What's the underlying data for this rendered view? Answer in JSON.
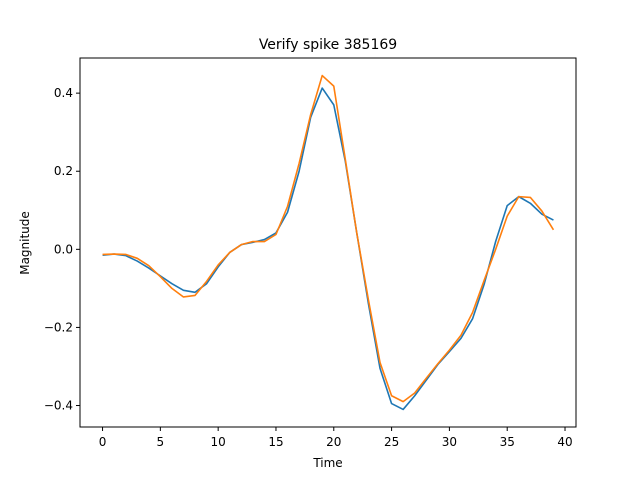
{
  "chart_data": {
    "type": "line",
    "title": "Verify spike 385169",
    "xlabel": "Time",
    "ylabel": "Magnitude",
    "xlim": [
      -1.95,
      40.95
    ],
    "ylim": [
      -0.455,
      0.49
    ],
    "x_ticks": [
      0,
      5,
      10,
      15,
      20,
      25,
      30,
      35,
      40
    ],
    "x_tick_labels": [
      "0",
      "5",
      "10",
      "15",
      "20",
      "25",
      "30",
      "35",
      "40"
    ],
    "y_ticks": [
      -0.4,
      -0.2,
      0.0,
      0.2,
      0.4
    ],
    "y_tick_labels": [
      "−0.4",
      "−0.2",
      "0.0",
      "0.2",
      "0.4"
    ],
    "grid": false,
    "legend": false,
    "x": [
      0,
      1,
      2,
      3,
      4,
      5,
      6,
      7,
      8,
      9,
      10,
      11,
      12,
      13,
      14,
      15,
      16,
      17,
      18,
      19,
      20,
      21,
      22,
      23,
      24,
      25,
      26,
      27,
      28,
      29,
      30,
      31,
      32,
      33,
      34,
      35,
      36,
      37,
      38,
      39
    ],
    "series": [
      {
        "color": "#1f77b4",
        "values": [
          -0.015,
          -0.012,
          -0.016,
          -0.03,
          -0.048,
          -0.068,
          -0.088,
          -0.105,
          -0.11,
          -0.088,
          -0.045,
          -0.008,
          0.012,
          0.018,
          0.025,
          0.042,
          0.095,
          0.2,
          0.338,
          0.413,
          0.37,
          0.225,
          0.04,
          -0.14,
          -0.305,
          -0.395,
          -0.41,
          -0.375,
          -0.335,
          -0.295,
          -0.262,
          -0.228,
          -0.178,
          -0.09,
          0.02,
          0.112,
          0.135,
          0.118,
          0.09,
          0.075
        ]
      },
      {
        "color": "#ff7f0e",
        "values": [
          -0.013,
          -0.012,
          -0.013,
          -0.023,
          -0.042,
          -0.07,
          -0.1,
          -0.122,
          -0.118,
          -0.082,
          -0.04,
          -0.008,
          0.012,
          0.02,
          0.02,
          0.038,
          0.11,
          0.22,
          0.345,
          0.445,
          0.418,
          0.23,
          0.04,
          -0.13,
          -0.29,
          -0.375,
          -0.39,
          -0.368,
          -0.33,
          -0.293,
          -0.258,
          -0.22,
          -0.162,
          -0.08,
          0.0,
          0.085,
          0.135,
          0.133,
          0.098,
          0.05
        ]
      }
    ]
  }
}
